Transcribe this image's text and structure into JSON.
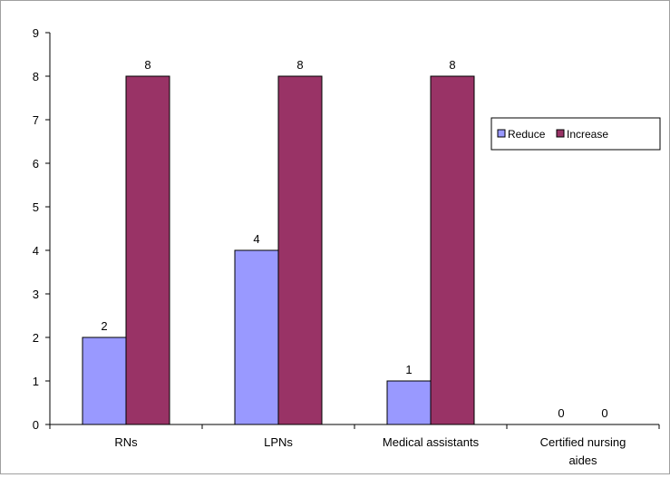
{
  "chart_data": {
    "type": "bar",
    "title": "",
    "xlabel": "",
    "ylabel": "",
    "ylim": [
      0,
      9
    ],
    "yticks": [
      0,
      1,
      2,
      3,
      4,
      5,
      6,
      7,
      8,
      9
    ],
    "categories": [
      "RNs",
      "LPNs",
      "Medical assistants",
      "Certified nursing aides"
    ],
    "series": [
      {
        "name": "Reduce",
        "values": [
          2,
          4,
          1,
          0
        ],
        "color": "#9999ff"
      },
      {
        "name": "Increase",
        "values": [
          8,
          8,
          8,
          0
        ],
        "color": "#993366"
      }
    ],
    "data_labels_shown": true,
    "legend_position": "right",
    "grid": false
  }
}
